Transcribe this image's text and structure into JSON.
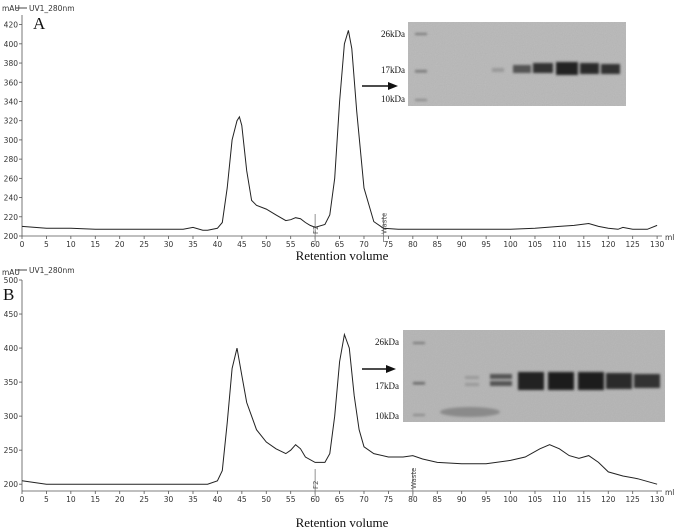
{
  "chart_data": [
    {
      "type": "line",
      "panel_label": "A",
      "legend": "UV1_280nm",
      "y_unit": "mAU",
      "x_unit": "ml",
      "xlabel": "Retention volume",
      "xlim": [
        0,
        131
      ],
      "ylim": [
        200,
        430
      ],
      "xticks": [
        0,
        5,
        10,
        15,
        20,
        25,
        30,
        35,
        40,
        45,
        50,
        55,
        60,
        65,
        70,
        75,
        80,
        85,
        90,
        95,
        100,
        105,
        110,
        115,
        120,
        125,
        130
      ],
      "yticks": [
        200,
        220,
        240,
        260,
        280,
        300,
        320,
        340,
        360,
        380,
        400,
        420
      ],
      "series": [
        {
          "x": [
            0,
            5,
            10,
            15,
            20,
            25,
            30,
            33,
            35,
            37,
            38,
            40,
            41,
            42,
            43,
            44,
            44.5,
            45,
            46,
            47,
            48,
            50,
            52,
            54,
            55,
            56,
            57,
            58,
            59,
            60,
            62,
            63,
            64,
            65,
            66,
            66.8,
            67.5,
            68.5,
            70,
            72,
            74,
            77,
            80,
            85,
            90,
            95,
            100,
            105,
            110,
            113,
            116,
            118,
            120,
            122,
            123,
            125,
            128,
            130
          ],
          "y": [
            210,
            208,
            208,
            207,
            207,
            207,
            207,
            207,
            209,
            206,
            206,
            208,
            214,
            250,
            300,
            320,
            324,
            315,
            268,
            237,
            232,
            228,
            222,
            216,
            217,
            219,
            218,
            214,
            211,
            209,
            212,
            222,
            260,
            340,
            400,
            414,
            395,
            330,
            250,
            215,
            208,
            207,
            207,
            207,
            207,
            207,
            207,
            208,
            210,
            211,
            213,
            210,
            208,
            207,
            209,
            207,
            207,
            211
          ]
        }
      ],
      "annotations": [
        {
          "text": "F2",
          "x": 60
        },
        {
          "text": "Waste",
          "x": 74
        }
      ],
      "gel_markers": [
        "26kDa",
        "17kDa",
        "10kDa"
      ]
    },
    {
      "type": "line",
      "panel_label": "B",
      "legend": "UV1_280nm",
      "y_unit": "mAU",
      "x_unit": "ml",
      "xlabel": "Retention volume",
      "xlim": [
        0,
        131
      ],
      "ylim": [
        190,
        500
      ],
      "xticks": [
        0,
        5,
        10,
        15,
        20,
        25,
        30,
        35,
        40,
        45,
        50,
        55,
        60,
        65,
        70,
        75,
        80,
        85,
        90,
        95,
        100,
        105,
        110,
        115,
        120,
        125,
        130
      ],
      "yticks": [
        200,
        250,
        300,
        350,
        400,
        450,
        500
      ],
      "series": [
        {
          "x": [
            0,
            5,
            10,
            15,
            20,
            25,
            30,
            35,
            38,
            40,
            41,
            42,
            43,
            44,
            45,
            46,
            48,
            50,
            52,
            54,
            55,
            56,
            57,
            58,
            60,
            62,
            63,
            64,
            65,
            66,
            67,
            68,
            69,
            70,
            72,
            75,
            78,
            80,
            82,
            85,
            90,
            95,
            100,
            103,
            106,
            108,
            110,
            112,
            114,
            116,
            118,
            120,
            123,
            126,
            130
          ],
          "y": [
            205,
            200,
            200,
            200,
            200,
            200,
            200,
            200,
            200,
            205,
            220,
            290,
            370,
            400,
            360,
            320,
            280,
            262,
            252,
            245,
            250,
            258,
            252,
            240,
            232,
            232,
            245,
            300,
            380,
            420,
            400,
            330,
            280,
            255,
            245,
            240,
            240,
            242,
            237,
            232,
            230,
            230,
            235,
            240,
            252,
            258,
            252,
            242,
            238,
            242,
            232,
            218,
            212,
            208,
            200
          ]
        }
      ],
      "annotations": [
        {
          "text": "F2",
          "x": 60
        },
        {
          "text": "Waste",
          "x": 80
        }
      ],
      "gel_markers": [
        "26kDa",
        "17kDa",
        "10kDa"
      ]
    }
  ]
}
